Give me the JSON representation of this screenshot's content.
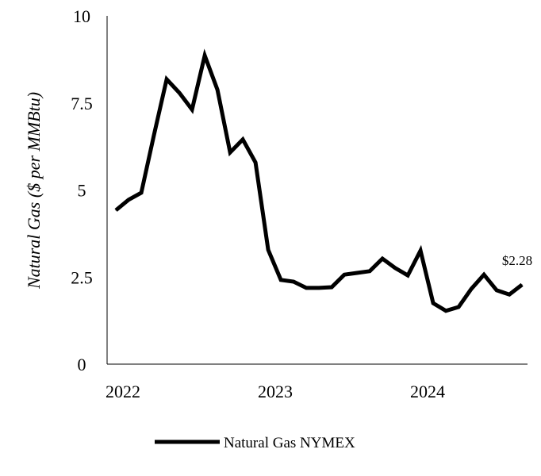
{
  "chart_data": {
    "type": "line",
    "title": "",
    "xlabel": "",
    "ylabel": "Natural Gas ($ per MMBtu)",
    "ylim": [
      0,
      10
    ],
    "xlim": [
      2021.85,
      2024.6
    ],
    "yticks": [
      0,
      2.5,
      5,
      7.5,
      10
    ],
    "ytick_labels": [
      "0",
      "2.5",
      "5",
      "7.5",
      "10"
    ],
    "xticks": [
      2022,
      2023,
      2024
    ],
    "xtick_labels": [
      "2022",
      "2023",
      "2024"
    ],
    "grid": false,
    "legend_position": "bottom",
    "annotation": "$2.28",
    "series": [
      {
        "name": "Natural Gas NYMEX",
        "color": "#000000",
        "x_start": 2021.917,
        "x_step_months": 1,
        "values": [
          4.42,
          4.72,
          4.92,
          6.58,
          8.18,
          7.79,
          7.31,
          8.86,
          7.88,
          6.08,
          6.45,
          5.79,
          3.28,
          2.42,
          2.37,
          2.19,
          2.19,
          2.21,
          2.57,
          2.62,
          2.67,
          3.03,
          2.76,
          2.55,
          3.26,
          1.75,
          1.53,
          1.64,
          2.16,
          2.57,
          2.12,
          2.0,
          2.28
        ]
      }
    ]
  }
}
